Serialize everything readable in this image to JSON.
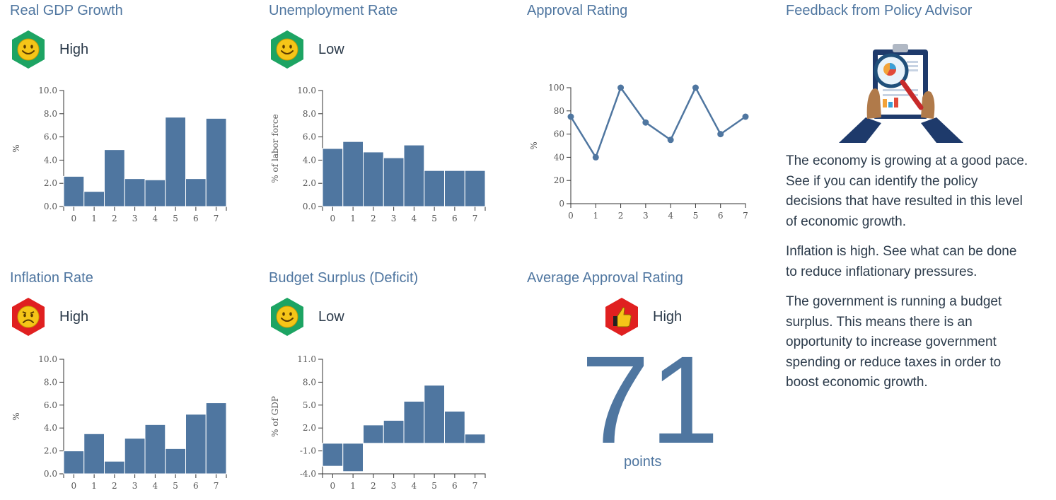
{
  "colors": {
    "accent": "#4f76a0",
    "good": "#1da463",
    "bad": "#e02020",
    "face": "#f5c518"
  },
  "gdp": {
    "title": "Real GDP Growth",
    "status": "High",
    "status_icon": "smiley-face-icon",
    "chart_data": {
      "type": "bar",
      "categories": [
        "0",
        "1",
        "2",
        "3",
        "4",
        "5",
        "6",
        "7"
      ],
      "values": [
        2.6,
        1.3,
        4.9,
        2.4,
        2.3,
        7.7,
        2.4,
        7.6
      ],
      "ylabel": "%",
      "ylim": [
        0,
        10
      ],
      "yticks": [
        "0.0",
        "2.0",
        "4.0",
        "6.0",
        "8.0",
        "10.0"
      ]
    }
  },
  "unemployment": {
    "title": "Unemployment Rate",
    "status": "Low",
    "status_icon": "smiley-face-icon",
    "chart_data": {
      "type": "bar",
      "categories": [
        "0",
        "1",
        "2",
        "3",
        "4",
        "5",
        "6",
        "7"
      ],
      "values": [
        5.0,
        5.6,
        4.7,
        4.2,
        5.3,
        3.1,
        3.1,
        3.1
      ],
      "ylabel": "% of labor force",
      "ylim": [
        0,
        10
      ],
      "yticks": [
        "0.0",
        "2.0",
        "4.0",
        "6.0",
        "8.0",
        "10.0"
      ]
    }
  },
  "approval": {
    "title": "Approval Rating",
    "chart_data": {
      "type": "line",
      "x": [
        "0",
        "1",
        "2",
        "3",
        "4",
        "5",
        "6",
        "7"
      ],
      "values": [
        75,
        40,
        100,
        70,
        55,
        100,
        60,
        75
      ],
      "ylabel": "%",
      "ylim": [
        0,
        100
      ],
      "yticks": [
        "0",
        "20",
        "40",
        "60",
        "80",
        "100"
      ]
    }
  },
  "inflation": {
    "title": "Inflation Rate",
    "status": "High",
    "status_icon": "frowning-face-icon",
    "chart_data": {
      "type": "bar",
      "categories": [
        "0",
        "1",
        "2",
        "3",
        "4",
        "5",
        "6",
        "7"
      ],
      "values": [
        2.0,
        3.5,
        1.1,
        3.1,
        4.3,
        2.2,
        5.2,
        6.2
      ],
      "ylabel": "%",
      "ylim": [
        0,
        10
      ],
      "yticks": [
        "0.0",
        "2.0",
        "4.0",
        "6.0",
        "8.0",
        "10.0"
      ]
    }
  },
  "budget": {
    "title": "Budget Surplus (Deficit)",
    "status": "Low",
    "status_icon": "smiley-face-icon",
    "chart_data": {
      "type": "bar",
      "categories": [
        "0",
        "1",
        "2",
        "3",
        "4",
        "5",
        "6",
        "7"
      ],
      "values": [
        -3.0,
        -3.7,
        2.4,
        3.0,
        5.5,
        7.6,
        4.2,
        1.2
      ],
      "ylabel": "% of GDP",
      "ylim": [
        -4,
        11
      ],
      "yticks": [
        "-4.0",
        "-1.0",
        "2.0",
        "5.0",
        "8.0",
        "11.0"
      ]
    }
  },
  "average": {
    "title": "Average Approval Rating",
    "status": "High",
    "status_icon": "thumbs-up-icon",
    "value": "71",
    "unit": "points"
  },
  "feedback": {
    "title": "Feedback from Policy Advisor",
    "illustration": "clipboard-magnifier-icon",
    "paragraphs": [
      "The economy is growing at a good pace. See if you can identify the policy decisions that have resulted in this level of economic growth.",
      "Inflation is high. See what can be done to reduce inflationary pressures.",
      "The government is running a budget surplus. This means there is an opportunity to increase government spending or reduce taxes in order to boost economic growth."
    ]
  }
}
